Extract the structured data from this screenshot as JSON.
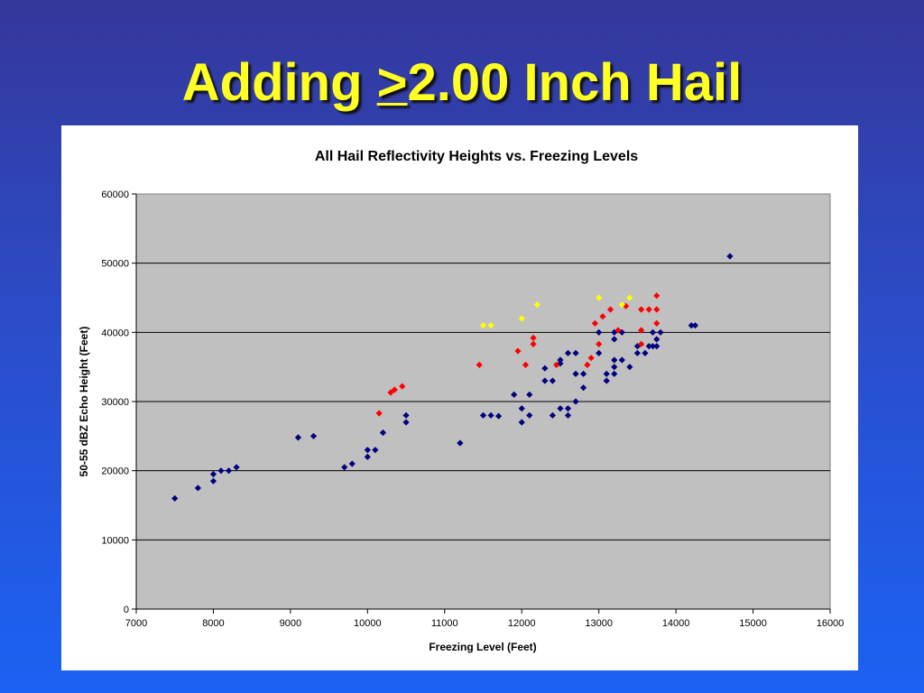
{
  "slide": {
    "title_prefix": "Adding ",
    "title_gt": ">",
    "title_rest": "2.00 Inch Hail"
  },
  "chart_data": {
    "type": "scatter",
    "title": "All Hail Reflectivity Heights vs. Freezing Levels",
    "xlabel": "Freezing Level (Feet)",
    "ylabel": "50-55 dBZ Echo Height (Feet)",
    "xlim": [
      7000,
      16000
    ],
    "ylim": [
      0,
      60000
    ],
    "xticks": [
      7000,
      8000,
      9000,
      10000,
      11000,
      12000,
      13000,
      14000,
      15000,
      16000
    ],
    "yticks": [
      0,
      10000,
      20000,
      30000,
      40000,
      50000,
      60000
    ],
    "grid": "horizontal",
    "plot_background": "#c0c0c0",
    "legend": "none",
    "series": [
      {
        "color": "#000080",
        "points": [
          [
            7500,
            16000
          ],
          [
            7800,
            17500
          ],
          [
            8000,
            18500
          ],
          [
            8000,
            19500
          ],
          [
            8100,
            20000
          ],
          [
            8200,
            20000
          ],
          [
            8300,
            20500
          ],
          [
            9100,
            24800
          ],
          [
            9300,
            25000
          ],
          [
            9700,
            20500
          ],
          [
            9800,
            21000
          ],
          [
            10000,
            22000
          ],
          [
            10000,
            23000
          ],
          [
            10100,
            23000
          ],
          [
            10200,
            25500
          ],
          [
            10500,
            27000
          ],
          [
            10500,
            28000
          ],
          [
            11200,
            24000
          ],
          [
            11500,
            28000
          ],
          [
            11600,
            28000
          ],
          [
            11700,
            27900
          ],
          [
            11900,
            31000
          ],
          [
            12000,
            27000
          ],
          [
            12000,
            29000
          ],
          [
            12100,
            28000
          ],
          [
            12100,
            31000
          ],
          [
            12300,
            33000
          ],
          [
            12300,
            34800
          ],
          [
            12400,
            28000
          ],
          [
            12400,
            33000
          ],
          [
            12500,
            29000
          ],
          [
            12500,
            35500
          ],
          [
            12500,
            36000
          ],
          [
            12600,
            28000
          ],
          [
            12600,
            29000
          ],
          [
            12600,
            37000
          ],
          [
            12700,
            30000
          ],
          [
            12700,
            34000
          ],
          [
            12700,
            37000
          ],
          [
            12800,
            32000
          ],
          [
            12800,
            34000
          ],
          [
            13000,
            37000
          ],
          [
            13000,
            40000
          ],
          [
            13100,
            33000
          ],
          [
            13100,
            34000
          ],
          [
            13200,
            34000
          ],
          [
            13200,
            35000
          ],
          [
            13200,
            36000
          ],
          [
            13200,
            39000
          ],
          [
            13200,
            40000
          ],
          [
            13300,
            36000
          ],
          [
            13300,
            40000
          ],
          [
            13400,
            35000
          ],
          [
            13500,
            37000
          ],
          [
            13500,
            38000
          ],
          [
            13600,
            37000
          ],
          [
            13650,
            38000
          ],
          [
            13700,
            38000
          ],
          [
            13700,
            40000
          ],
          [
            13750,
            38000
          ],
          [
            13750,
            39000
          ],
          [
            13800,
            40000
          ],
          [
            14200,
            41000
          ],
          [
            14250,
            41000
          ],
          [
            14700,
            51000
          ]
        ]
      },
      {
        "color": "#ff0000",
        "points": [
          [
            10150,
            28300
          ],
          [
            10300,
            31300
          ],
          [
            10350,
            31700
          ],
          [
            10450,
            32200
          ],
          [
            11450,
            35300
          ],
          [
            11950,
            37300
          ],
          [
            12050,
            35300
          ],
          [
            12150,
            38300
          ],
          [
            12150,
            39200
          ],
          [
            12450,
            35300
          ],
          [
            12850,
            35300
          ],
          [
            12900,
            36300
          ],
          [
            12950,
            41300
          ],
          [
            13000,
            38300
          ],
          [
            13050,
            42300
          ],
          [
            13150,
            43300
          ],
          [
            13250,
            40300
          ],
          [
            13350,
            43800
          ],
          [
            13550,
            38300
          ],
          [
            13550,
            40300
          ],
          [
            13550,
            43300
          ],
          [
            13650,
            43300
          ],
          [
            13750,
            41300
          ],
          [
            13750,
            43300
          ],
          [
            13750,
            45300
          ]
        ]
      },
      {
        "color": "#ffff00",
        "points": [
          [
            11500,
            41000
          ],
          [
            11600,
            41000
          ],
          [
            12000,
            42000
          ],
          [
            12200,
            44000
          ],
          [
            13000,
            45000
          ],
          [
            13300,
            44000
          ],
          [
            13400,
            45000
          ]
        ]
      }
    ]
  }
}
